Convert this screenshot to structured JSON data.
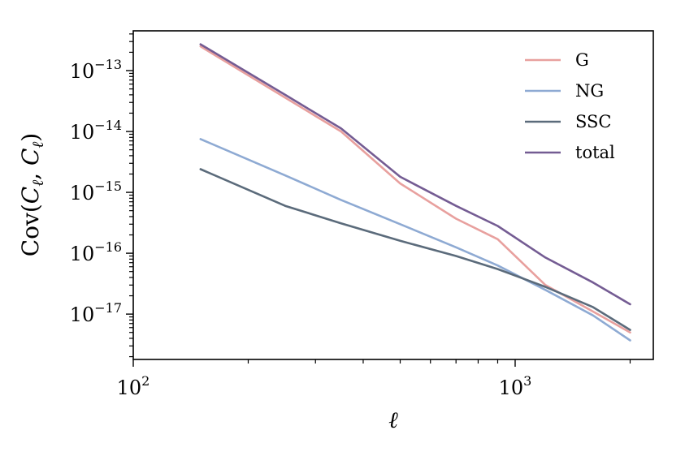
{
  "chart_data": {
    "type": "line",
    "xlabel": "ℓ",
    "ylabel_parts": [
      "Cov(",
      "C",
      "ℓ",
      ", ",
      "C",
      "ℓ",
      ")"
    ],
    "xscale": "log",
    "yscale": "log",
    "xlim": [
      100,
      2300
    ],
    "ylim": [
      1.8e-18,
      4.5e-13
    ],
    "legend": "upper-right",
    "grid": false,
    "x_ticks": [
      {
        "value": 100,
        "base": "10",
        "exp": "2"
      },
      {
        "value": 1000,
        "base": "10",
        "exp": "3"
      }
    ],
    "y_ticks": [
      {
        "value": 1e-13,
        "base": "10",
        "exp": "−13"
      },
      {
        "value": 1e-14,
        "base": "10",
        "exp": "−14"
      },
      {
        "value": 1e-15,
        "base": "10",
        "exp": "−15"
      },
      {
        "value": 1e-16,
        "base": "10",
        "exp": "−16"
      },
      {
        "value": 1e-17,
        "base": "10",
        "exp": "−17"
      }
    ],
    "series": [
      {
        "name": "G",
        "color": "#e8a09e",
        "x": [
          150,
          350,
          500,
          700,
          900,
          1200,
          1600,
          2000
        ],
        "y": [
          2.5e-13,
          1e-14,
          1.4e-15,
          3.7e-16,
          1.7e-16,
          3e-17,
          1.1e-17,
          5e-18
        ]
      },
      {
        "name": "NG",
        "color": "#8eaad3",
        "x": [
          150,
          250,
          350,
          500,
          700,
          900,
          1200,
          1600,
          2000
        ],
        "y": [
          7.5e-15,
          1.9e-15,
          7.5e-16,
          3e-16,
          1.25e-16,
          6.3e-17,
          2.5e-17,
          9.5e-18,
          3.7e-18
        ]
      },
      {
        "name": "SSC",
        "color": "#5b6b7b",
        "x": [
          150,
          250,
          350,
          500,
          700,
          900,
          1200,
          1600,
          2000
        ],
        "y": [
          2.4e-15,
          6e-16,
          3.1e-16,
          1.6e-16,
          9e-17,
          5.5e-17,
          2.8e-17,
          1.3e-17,
          5.5e-18
        ]
      },
      {
        "name": "total",
        "color": "#745c93",
        "x": [
          150,
          250,
          350,
          500,
          700,
          900,
          1200,
          1600,
          2000
        ],
        "y": [
          2.7e-13,
          4e-14,
          1.12e-14,
          1.8e-15,
          6e-16,
          2.8e-16,
          8.5e-17,
          3.3e-17,
          1.45e-17
        ]
      }
    ]
  }
}
